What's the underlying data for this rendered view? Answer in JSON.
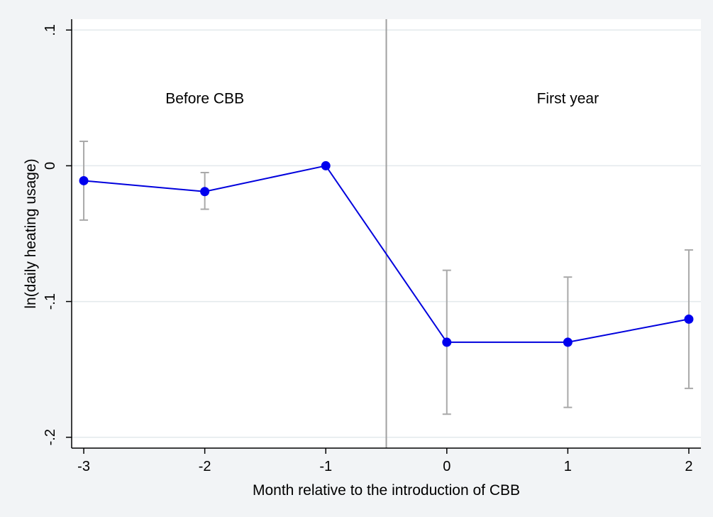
{
  "chart_data": {
    "type": "line",
    "title": "",
    "xlabel": "Month relative to the introduction of CBB",
    "ylabel": "ln(daily heating usage)",
    "xlim": [
      -3.1,
      2.1
    ],
    "ylim": [
      -0.208,
      0.108
    ],
    "x_ticks": [
      -3,
      -2,
      -1,
      0,
      1,
      2
    ],
    "x_tick_labels": [
      "-3",
      "-2",
      "-1",
      "0",
      "1",
      "2"
    ],
    "y_ticks": [
      -0.2,
      -0.1,
      0,
      0.1
    ],
    "y_tick_labels": [
      "-.2",
      "-.1",
      "0",
      ".1"
    ],
    "grid": "horizontal",
    "reference_line_x": -0.5,
    "annotations": [
      {
        "text": "Before CBB",
        "x": -2,
        "y": 0.049
      },
      {
        "text": "First year",
        "x": 1,
        "y": 0.049
      }
    ],
    "series": [
      {
        "name": "",
        "x": [
          -3,
          -2,
          -1,
          0,
          1,
          2
        ],
        "y": [
          -0.011,
          -0.019,
          0.0,
          -0.13,
          -0.13,
          -0.113
        ],
        "ci_low": [
          -0.04,
          -0.032,
          null,
          -0.183,
          -0.178,
          -0.164
        ],
        "ci_high": [
          0.018,
          -0.005,
          null,
          -0.077,
          -0.082,
          -0.062
        ]
      }
    ],
    "colors": {
      "line": "#0000dd",
      "marker": "#0000ee",
      "ci": "#a9a9a9",
      "reference_line": "#a0a0a0",
      "grid": "#e3e9ec",
      "plot_background": "#ffffff",
      "outer_background": "#f2f4f6"
    }
  }
}
